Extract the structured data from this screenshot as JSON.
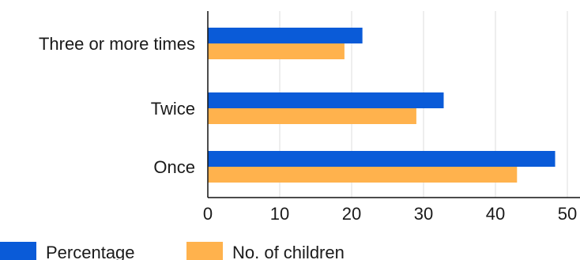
{
  "chart_data": {
    "type": "bar",
    "orientation": "horizontal",
    "categories": [
      "Three or more times",
      "Twice",
      "Once"
    ],
    "series": [
      {
        "name": "Percentage",
        "color": "#0a5bd8",
        "values": [
          21.5,
          32.8,
          48.3
        ]
      },
      {
        "name": "No. of children",
        "color": "#ffb24d",
        "values": [
          19,
          29,
          43
        ]
      }
    ],
    "xlim": [
      0,
      52
    ],
    "xticks": [
      0,
      10,
      20,
      30,
      40,
      50
    ],
    "grid": true,
    "legend": "bottom-left"
  }
}
